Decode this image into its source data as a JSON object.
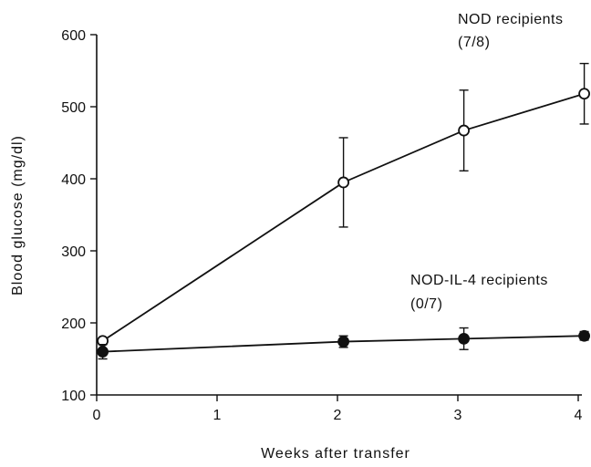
{
  "chart_data": {
    "type": "line",
    "xlabel": "Weeks after transfer",
    "ylabel": "Blood glucose (mg/dl)",
    "xlim": [
      0,
      4
    ],
    "ylim": [
      100,
      600
    ],
    "xticks": [
      0,
      1,
      2,
      3,
      4
    ],
    "yticks": [
      100,
      200,
      300,
      400,
      500,
      600
    ],
    "grid": false,
    "series": [
      {
        "name": "NOD recipients",
        "marker": "open-circle",
        "color": "#111111",
        "x": [
          0.05,
          2.05,
          3.05,
          4.05
        ],
        "y": [
          175,
          395,
          467,
          518
        ],
        "err": [
          3,
          62,
          56,
          42
        ]
      },
      {
        "name": "NOD-IL-4 recipients",
        "marker": "filled-circle",
        "color": "#111111",
        "x": [
          0.05,
          2.05,
          3.05,
          4.05
        ],
        "y": [
          160,
          174,
          178,
          182
        ],
        "err": [
          10,
          8,
          15,
          6
        ]
      }
    ],
    "annotations": [
      {
        "text": "NOD recipients",
        "sub": "(7/8)"
      },
      {
        "text": "NOD-IL-4 recipients",
        "sub": "(0/7)"
      }
    ]
  }
}
